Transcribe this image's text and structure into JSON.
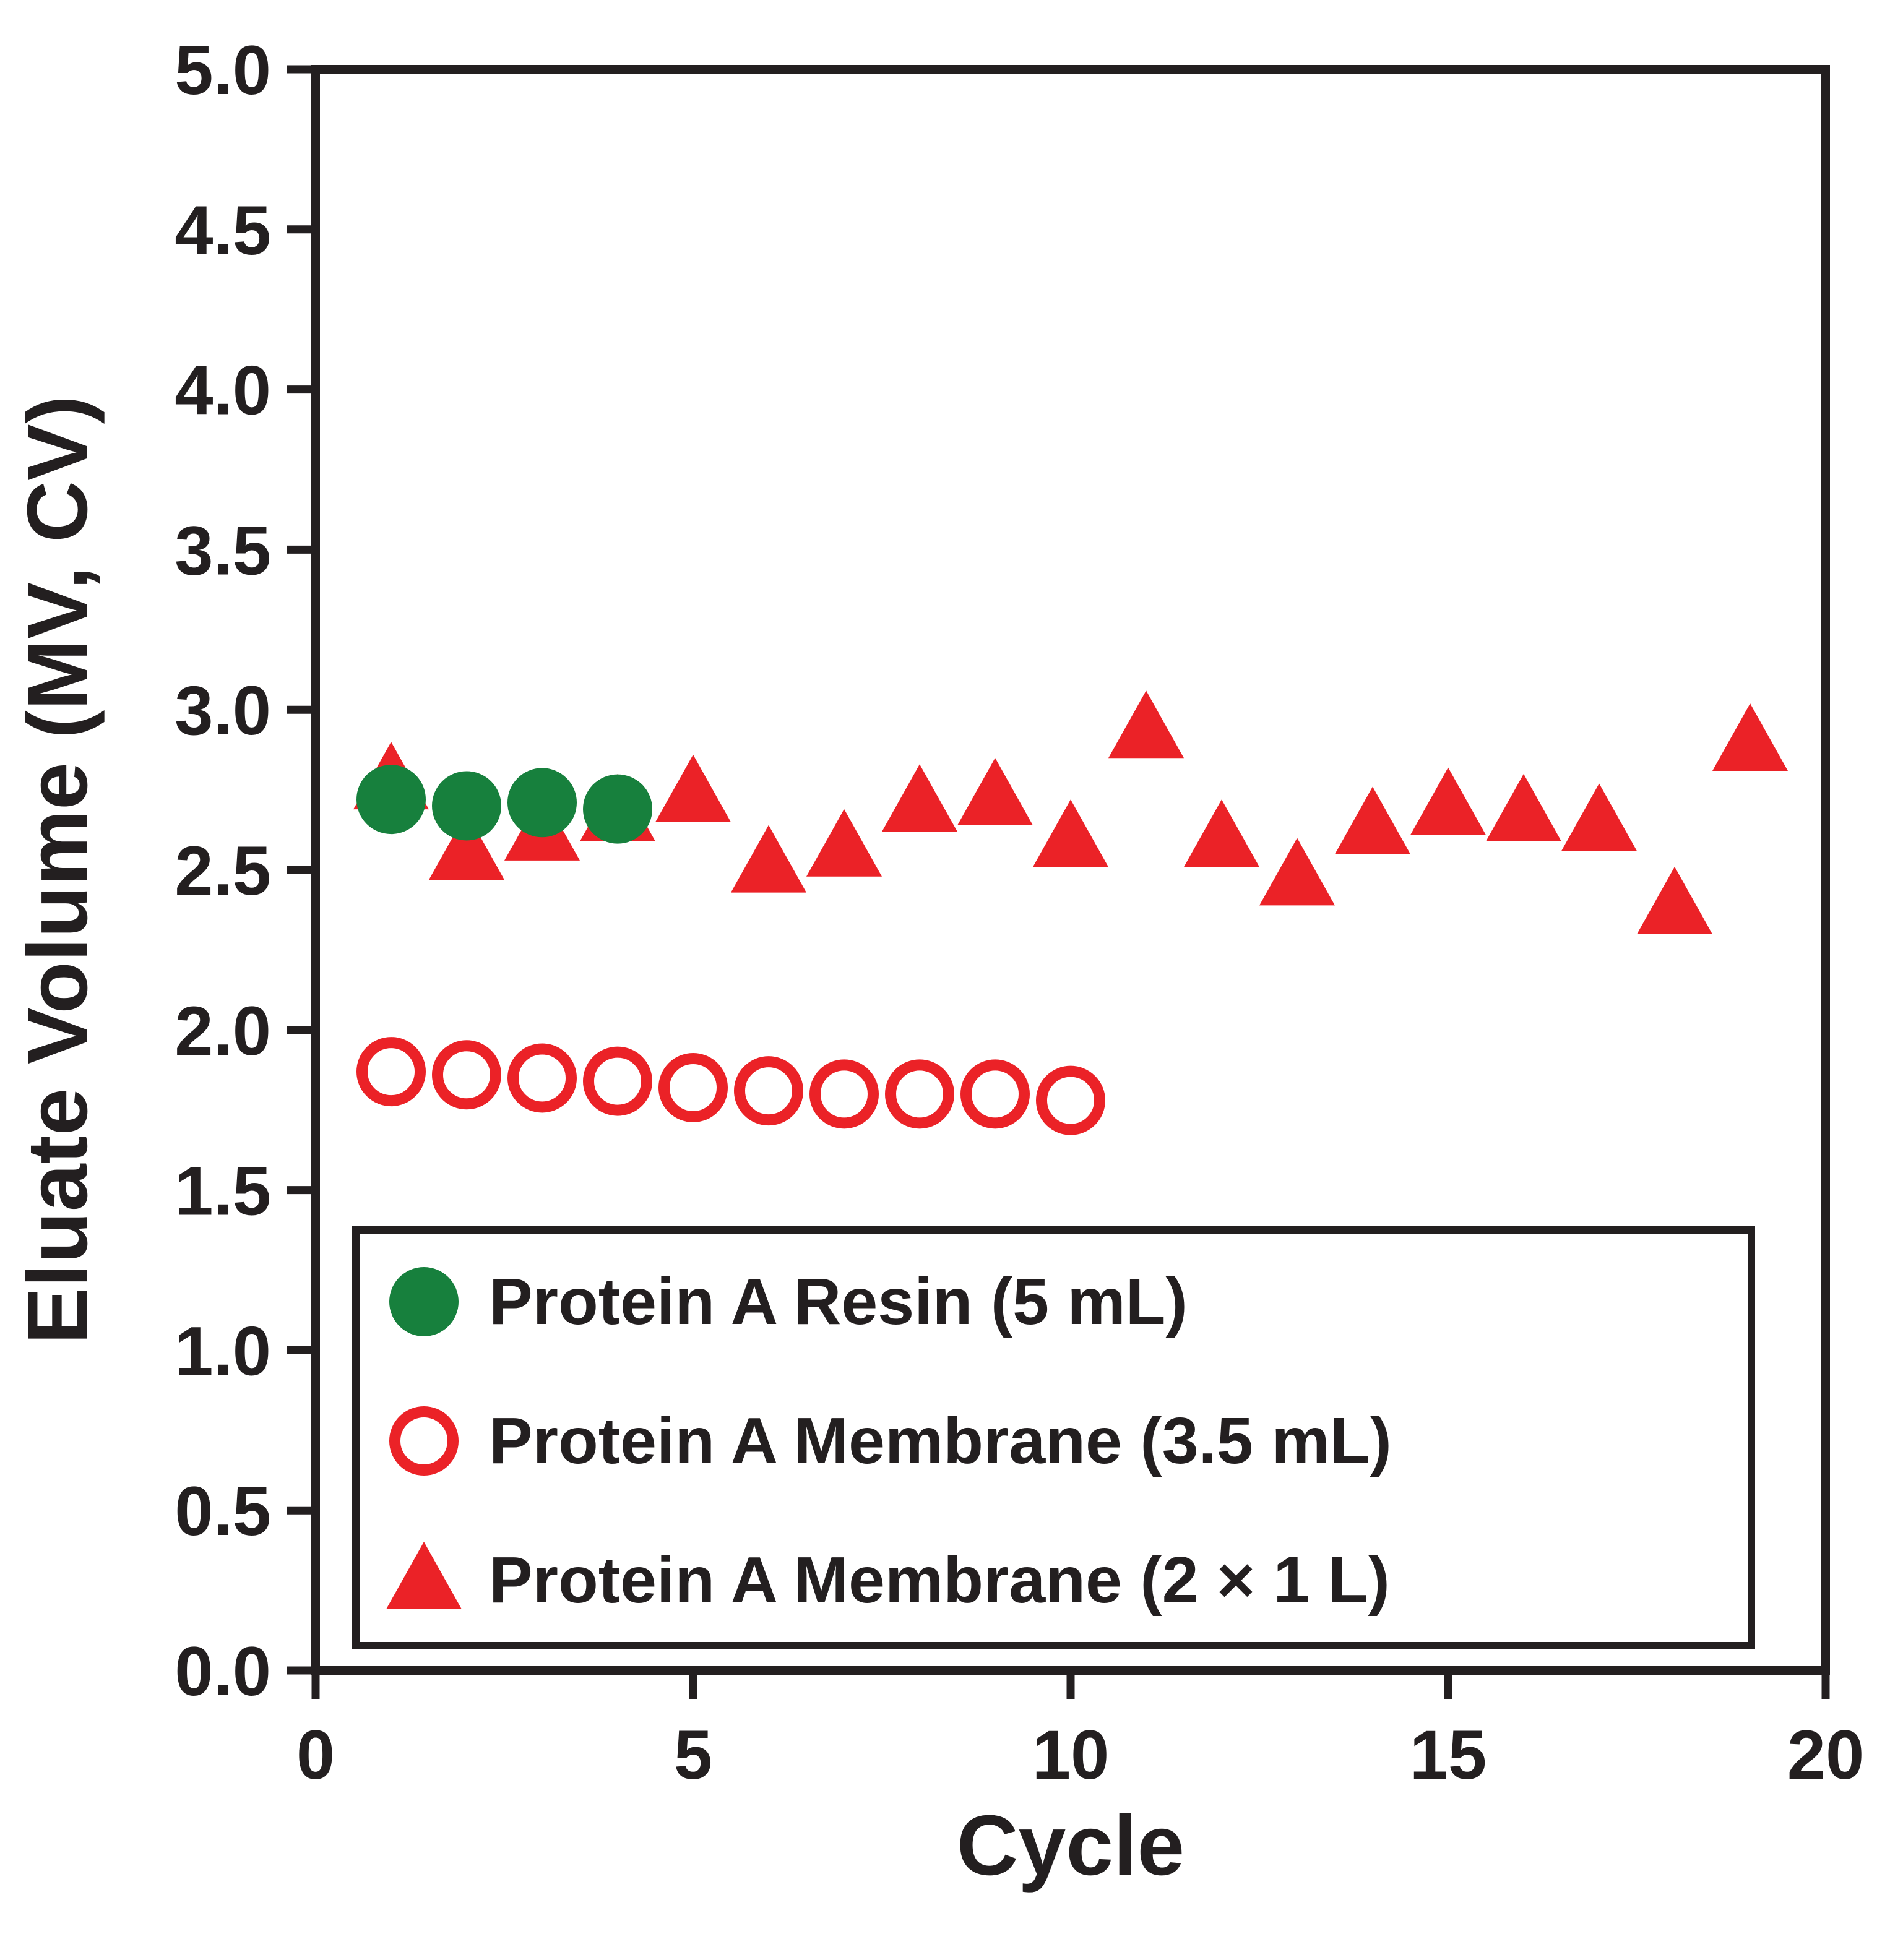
{
  "figure": {
    "background": "#ffffff",
    "frame_color": "#231f20"
  },
  "chart_data": {
    "type": "scatter",
    "title": "",
    "xlabel": "Cycle",
    "ylabel": "Eluate Volume (MV, CV)",
    "xlim": [
      0,
      20
    ],
    "ylim": [
      0.0,
      5.0
    ],
    "grid": false,
    "xticks": [
      {
        "value": 0,
        "label": "0"
      },
      {
        "value": 5,
        "label": "5"
      },
      {
        "value": 10,
        "label": "10"
      },
      {
        "value": 15,
        "label": "15"
      },
      {
        "value": 20,
        "label": "20"
      }
    ],
    "yticks": [
      {
        "value": 0.0,
        "label": "0.0"
      },
      {
        "value": 0.5,
        "label": "0.5"
      },
      {
        "value": 1.0,
        "label": "1.0"
      },
      {
        "value": 1.5,
        "label": "1.5"
      },
      {
        "value": 2.0,
        "label": "2.0"
      },
      {
        "value": 2.5,
        "label": "2.5"
      },
      {
        "value": 3.0,
        "label": "3.0"
      },
      {
        "value": 3.5,
        "label": "3.5"
      },
      {
        "value": 4.0,
        "label": "4.0"
      },
      {
        "value": 4.5,
        "label": "4.5"
      },
      {
        "value": 5.0,
        "label": "5.0"
      }
    ],
    "legend": {
      "position": "lower-left",
      "border_color": "#231f20",
      "background": "#ffffff"
    },
    "series": [
      {
        "name": "Protein A Resin (5 mL)",
        "marker": "filled-circle",
        "color": "#17803d",
        "x": [
          1,
          2,
          3,
          4
        ],
        "y": [
          2.72,
          2.7,
          2.71,
          2.69
        ]
      },
      {
        "name": "Protein A Membrane (3.5 mL)",
        "marker": "open-circle",
        "color": "#eb2227",
        "x": [
          1,
          2,
          3,
          4,
          5,
          6,
          7,
          8,
          9,
          10
        ],
        "y": [
          1.87,
          1.86,
          1.85,
          1.84,
          1.82,
          1.81,
          1.8,
          1.8,
          1.8,
          1.78
        ]
      },
      {
        "name": "Protein A Membrane (2 × 1 L)",
        "marker": "filled-triangle",
        "color": "#eb2227",
        "x": [
          1,
          2,
          3,
          4,
          5,
          6,
          7,
          8,
          9,
          10,
          11,
          12,
          13,
          14,
          15,
          16,
          17,
          18,
          19
        ],
        "y": [
          2.78,
          2.56,
          2.62,
          2.68,
          2.74,
          2.52,
          2.57,
          2.71,
          2.73,
          2.6,
          2.94,
          2.6,
          2.48,
          2.64,
          2.7,
          2.68,
          2.65,
          2.39,
          2.9
        ]
      }
    ]
  }
}
